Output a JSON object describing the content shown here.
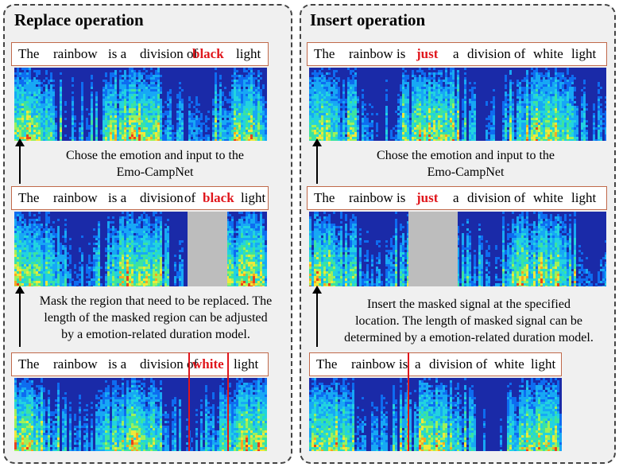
{
  "left_panel": {
    "title": "Replace operation",
    "top_sentence": {
      "words": [
        "The",
        "rainbow",
        "is a",
        "division of"
      ],
      "highlight": "black",
      "tail": "light"
    },
    "caption1": [
      "Chose the emotion and input to the",
      "Emo-CampNet"
    ],
    "middle_sentence": {
      "words": [
        "The",
        "rainbow",
        "is a",
        "division",
        "of"
      ],
      "highlight": "black",
      "tail": "light"
    },
    "caption2": [
      "Mask the region that need to be replaced. The",
      "length of the masked region can be adjusted",
      "by a emotion-related duration model."
    ],
    "bottom_sentence": {
      "words": [
        "The",
        "rainbow",
        "is a",
        "division of"
      ],
      "highlight": "white",
      "tail": "light"
    }
  },
  "right_panel": {
    "title": "Insert operation",
    "top_sentence": {
      "words": [
        "The",
        "rainbow",
        "is"
      ],
      "highlight": "just",
      "tail_words": [
        "a",
        "division of",
        "white",
        "light"
      ]
    },
    "caption1": [
      "Chose the emotion and input to the",
      "Emo-CampNet"
    ],
    "middle_sentence": {
      "words": [
        "The",
        "rainbow",
        "is"
      ],
      "highlight": "just",
      "tail_words": [
        "a",
        "division",
        "of",
        "white",
        "light"
      ]
    },
    "caption2": [
      "Insert the masked signal at the specified",
      "location. The length of masked signal can be",
      "determined by a emotion-related duration model."
    ],
    "bottom_sentence": {
      "words": [
        "The",
        "rainbow",
        "is",
        "a",
        "division of",
        "white",
        "light"
      ]
    }
  },
  "colors": {
    "highlight": "#e0161c",
    "sentence_border": "#c0694a",
    "mask": "#bdbdbd",
    "spectrogram_bg": "#1a2aa8"
  }
}
